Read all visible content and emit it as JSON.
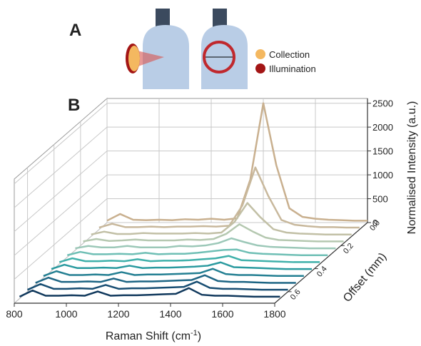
{
  "panel_a": {
    "label": "A",
    "legend": [
      {
        "name": "Collection",
        "color": "#f4b860"
      },
      {
        "name": "Illumination",
        "color": "#a31515"
      }
    ]
  },
  "chart_data": {
    "type": "waterfall",
    "panel_label": "B",
    "x_label": "Raman Shift (cm",
    "x_label_sup": "-1",
    "x_label_end": ")",
    "y_label": "Normalised Intensity (a.u.)",
    "z_label": "Offset (mm)",
    "x": [
      800,
      850,
      900,
      950,
      1000,
      1050,
      1100,
      1150,
      1200,
      1250,
      1300,
      1350,
      1400,
      1450,
      1500,
      1550,
      1600,
      1650,
      1700,
      1750,
      1800
    ],
    "xlim": [
      800,
      1800
    ],
    "xticks": [
      800,
      1000,
      1200,
      1400,
      1600,
      1800
    ],
    "ylim": [
      0,
      2600
    ],
    "yticks": [
      0,
      500,
      1000,
      1500,
      2000,
      2500
    ],
    "zlim": [
      0,
      0.7
    ],
    "zticks": [
      {
        "value": 0,
        "label": "0.0"
      },
      0.2,
      0.4,
      0.6
    ],
    "grid": true,
    "series": [
      {
        "z": 0,
        "color": "#c9b08f",
        "values": [
          40,
          180,
          60,
          50,
          60,
          50,
          70,
          60,
          80,
          60,
          90,
          900,
          2500,
          1200,
          300,
          120,
          80,
          60,
          50,
          40,
          40
        ]
      },
      {
        "z": 0.06,
        "color": "#c8b89c",
        "values": [
          40,
          120,
          50,
          50,
          60,
          50,
          60,
          60,
          70,
          60,
          80,
          500,
          1300,
          700,
          200,
          100,
          70,
          50,
          50,
          40,
          40
        ]
      },
      {
        "z": 0.12,
        "color": "#c2c0a6",
        "values": [
          40,
          100,
          50,
          50,
          70,
          60,
          60,
          60,
          70,
          60,
          80,
          300,
          700,
          400,
          150,
          80,
          60,
          50,
          40,
          40,
          40
        ]
      },
      {
        "z": 0.18,
        "color": "#b5c8b0",
        "values": [
          40,
          90,
          50,
          60,
          80,
          60,
          60,
          60,
          80,
          70,
          90,
          200,
          400,
          250,
          120,
          70,
          60,
          50,
          40,
          40,
          40
        ]
      },
      {
        "z": 0.24,
        "color": "#9cc8b8",
        "values": [
          40,
          90,
          60,
          60,
          90,
          60,
          60,
          60,
          90,
          80,
          100,
          150,
          250,
          170,
          100,
          70,
          60,
          50,
          40,
          40,
          40
        ]
      },
      {
        "z": 0.3,
        "color": "#6fbfb5",
        "values": [
          40,
          110,
          60,
          60,
          70,
          60,
          90,
          60,
          70,
          70,
          90,
          120,
          150,
          160,
          90,
          70,
          60,
          50,
          40,
          40,
          40
        ]
      },
      {
        "z": 0.36,
        "color": "#3fb0aa",
        "values": [
          40,
          120,
          60,
          60,
          70,
          60,
          100,
          60,
          70,
          70,
          80,
          100,
          120,
          170,
          80,
          70,
          60,
          50,
          40,
          40,
          40
        ]
      },
      {
        "z": 0.42,
        "color": "#2a9a9f",
        "values": [
          40,
          130,
          60,
          60,
          70,
          60,
          110,
          60,
          70,
          70,
          80,
          90,
          110,
          180,
          80,
          70,
          60,
          50,
          40,
          40,
          40
        ]
      },
      {
        "z": 0.48,
        "color": "#237f92",
        "values": [
          40,
          140,
          60,
          60,
          70,
          60,
          120,
          60,
          70,
          70,
          80,
          90,
          100,
          190,
          80,
          60,
          60,
          50,
          40,
          40,
          40
        ]
      },
      {
        "z": 0.54,
        "color": "#1d6584",
        "values": [
          40,
          150,
          60,
          60,
          70,
          60,
          130,
          60,
          70,
          70,
          80,
          90,
          100,
          200,
          80,
          60,
          60,
          50,
          40,
          40,
          40
        ]
      },
      {
        "z": 0.6,
        "color": "#174d72",
        "values": [
          40,
          160,
          60,
          60,
          70,
          60,
          140,
          60,
          70,
          70,
          80,
          90,
          100,
          210,
          80,
          60,
          60,
          50,
          40,
          40,
          40
        ]
      },
      {
        "z": 0.66,
        "color": "#10385c",
        "values": [
          40,
          170,
          60,
          60,
          70,
          60,
          150,
          60,
          70,
          70,
          80,
          90,
          100,
          220,
          80,
          60,
          60,
          50,
          40,
          40,
          40
        ]
      }
    ]
  }
}
